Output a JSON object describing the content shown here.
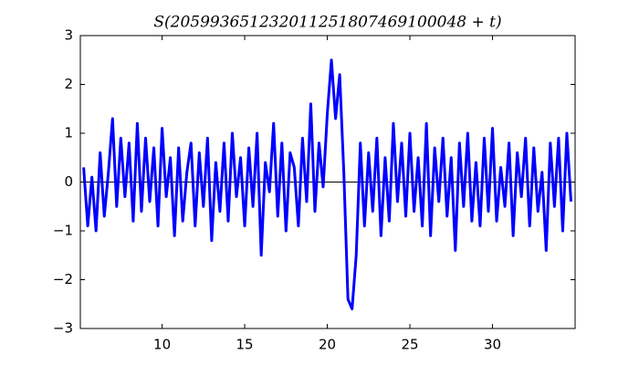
{
  "chart_data": {
    "type": "line",
    "title": "S(205993651232011251807469100048 + t)",
    "x": [
      5.25,
      5.5,
      5.75,
      6,
      6.25,
      6.5,
      6.75,
      7,
      7.25,
      7.5,
      7.75,
      8,
      8.25,
      8.5,
      8.75,
      9,
      9.25,
      9.5,
      9.75,
      10,
      10.25,
      10.5,
      10.75,
      11,
      11.25,
      11.5,
      11.75,
      12,
      12.25,
      12.5,
      12.75,
      13,
      13.25,
      13.5,
      13.75,
      14,
      14.25,
      14.5,
      14.75,
      15,
      15.25,
      15.5,
      15.75,
      16,
      16.25,
      16.5,
      16.75,
      17,
      17.25,
      17.5,
      17.75,
      18,
      18.25,
      18.5,
      18.75,
      19,
      19.25,
      19.5,
      19.75,
      20,
      20.25,
      20.5,
      20.75,
      21,
      21.25,
      21.5,
      21.75,
      22,
      22.25,
      22.5,
      22.75,
      23,
      23.25,
      23.5,
      23.75,
      24,
      24.25,
      24.5,
      24.75,
      25,
      25.25,
      25.5,
      25.75,
      26,
      26.25,
      26.5,
      26.75,
      27,
      27.25,
      27.5,
      27.75,
      28,
      28.25,
      28.5,
      28.75,
      29,
      29.25,
      29.5,
      29.75,
      30,
      30.25,
      30.5,
      30.75,
      31,
      31.25,
      31.5,
      31.75,
      32,
      32.25,
      32.5,
      32.75,
      33,
      33.25,
      33.5,
      33.75,
      34,
      34.25,
      34.5,
      34.75
    ],
    "series": [
      {
        "color": "#0000ff",
        "values": [
          0.3,
          -0.9,
          0.1,
          -1.0,
          0.6,
          -0.7,
          0.2,
          1.3,
          -0.5,
          0.9,
          -0.3,
          0.8,
          -0.8,
          1.2,
          -0.6,
          0.9,
          -0.4,
          0.7,
          -0.9,
          1.1,
          -0.3,
          0.5,
          -1.1,
          0.7,
          -0.8,
          0.2,
          0.8,
          -0.9,
          0.6,
          -0.5,
          0.9,
          -1.2,
          0.4,
          -0.6,
          0.8,
          -0.8,
          1.0,
          -0.3,
          0.5,
          -0.9,
          0.7,
          -0.5,
          1.0,
          -1.5,
          0.4,
          -0.2,
          1.2,
          -0.7,
          0.8,
          -1.0,
          0.6,
          0.3,
          -0.9,
          0.9,
          -0.4,
          1.6,
          -0.6,
          0.8,
          -0.1,
          1.4,
          2.5,
          1.3,
          2.2,
          0.2,
          -2.4,
          -2.6,
          -1.5,
          0.8,
          -0.9,
          0.6,
          -0.6,
          0.9,
          -1.1,
          0.5,
          -0.8,
          1.2,
          -0.4,
          0.8,
          -0.7,
          1.0,
          -0.6,
          0.5,
          -0.9,
          1.2,
          -1.1,
          0.7,
          -0.4,
          0.9,
          -0.7,
          0.5,
          -1.4,
          0.8,
          -0.5,
          1.0,
          -0.8,
          0.4,
          -0.9,
          0.9,
          -0.6,
          1.1,
          -0.8,
          0.3,
          -0.5,
          0.8,
          -1.1,
          0.6,
          -0.3,
          0.9,
          -0.9,
          0.7,
          -0.6,
          0.2,
          -1.4,
          0.8,
          -0.5,
          0.9,
          -1.0,
          1.0,
          -0.4
        ]
      }
    ],
    "hline": 0,
    "xlim": [
      5.05,
      35
    ],
    "ylim": [
      -3,
      3
    ],
    "xticks": [
      10,
      15,
      20,
      25,
      30
    ],
    "yticks": [
      {
        "value": -3,
        "label": "−3"
      },
      {
        "value": -2,
        "label": "−2"
      },
      {
        "value": -1,
        "label": "−1"
      },
      0,
      1,
      2,
      3
    ],
    "grid": false
  }
}
